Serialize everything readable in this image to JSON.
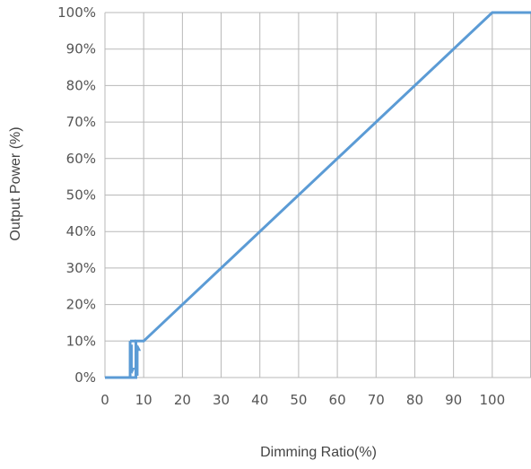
{
  "chart_data": {
    "type": "line",
    "xlabel": "Dimming Ratio(%)",
    "ylabel": "Output Power (%)",
    "xlim": [
      0,
      110
    ],
    "ylim": [
      0,
      100
    ],
    "x_ticks": [
      {
        "value": 0,
        "label": "0"
      },
      {
        "value": 10,
        "label": "10"
      },
      {
        "value": 20,
        "label": "20"
      },
      {
        "value": 30,
        "label": "30"
      },
      {
        "value": 40,
        "label": "40"
      },
      {
        "value": 50,
        "label": "50"
      },
      {
        "value": 60,
        "label": "60"
      },
      {
        "value": 70,
        "label": "70"
      },
      {
        "value": 80,
        "label": "80"
      },
      {
        "value": 90,
        "label": "90"
      },
      {
        "value": 100,
        "label": "100"
      }
    ],
    "y_ticks": [
      {
        "value": 0,
        "label": "0%"
      },
      {
        "value": 10,
        "label": "10%"
      },
      {
        "value": 20,
        "label": "20%"
      },
      {
        "value": 30,
        "label": "30%"
      },
      {
        "value": 40,
        "label": "40%"
      },
      {
        "value": 50,
        "label": "50%"
      },
      {
        "value": 60,
        "label": "60%"
      },
      {
        "value": 70,
        "label": "70%"
      },
      {
        "value": 80,
        "label": "80%"
      },
      {
        "value": 90,
        "label": "90%"
      },
      {
        "value": 100,
        "label": "100%"
      }
    ],
    "grid": true,
    "series": [
      {
        "color": "#5b9bd5",
        "points": [
          [
            0,
            0
          ],
          [
            8,
            0
          ],
          [
            8,
            10
          ],
          [
            10,
            10
          ],
          [
            100,
            100
          ],
          [
            110,
            100
          ]
        ]
      }
    ],
    "hysteresis": {
      "color": "#5b9bd5",
      "low_x": 6.5,
      "high_x": 8,
      "y_low": 0,
      "y_high": 10,
      "down_arrow_x": 7,
      "up_arrow_x": 8.5
    }
  }
}
